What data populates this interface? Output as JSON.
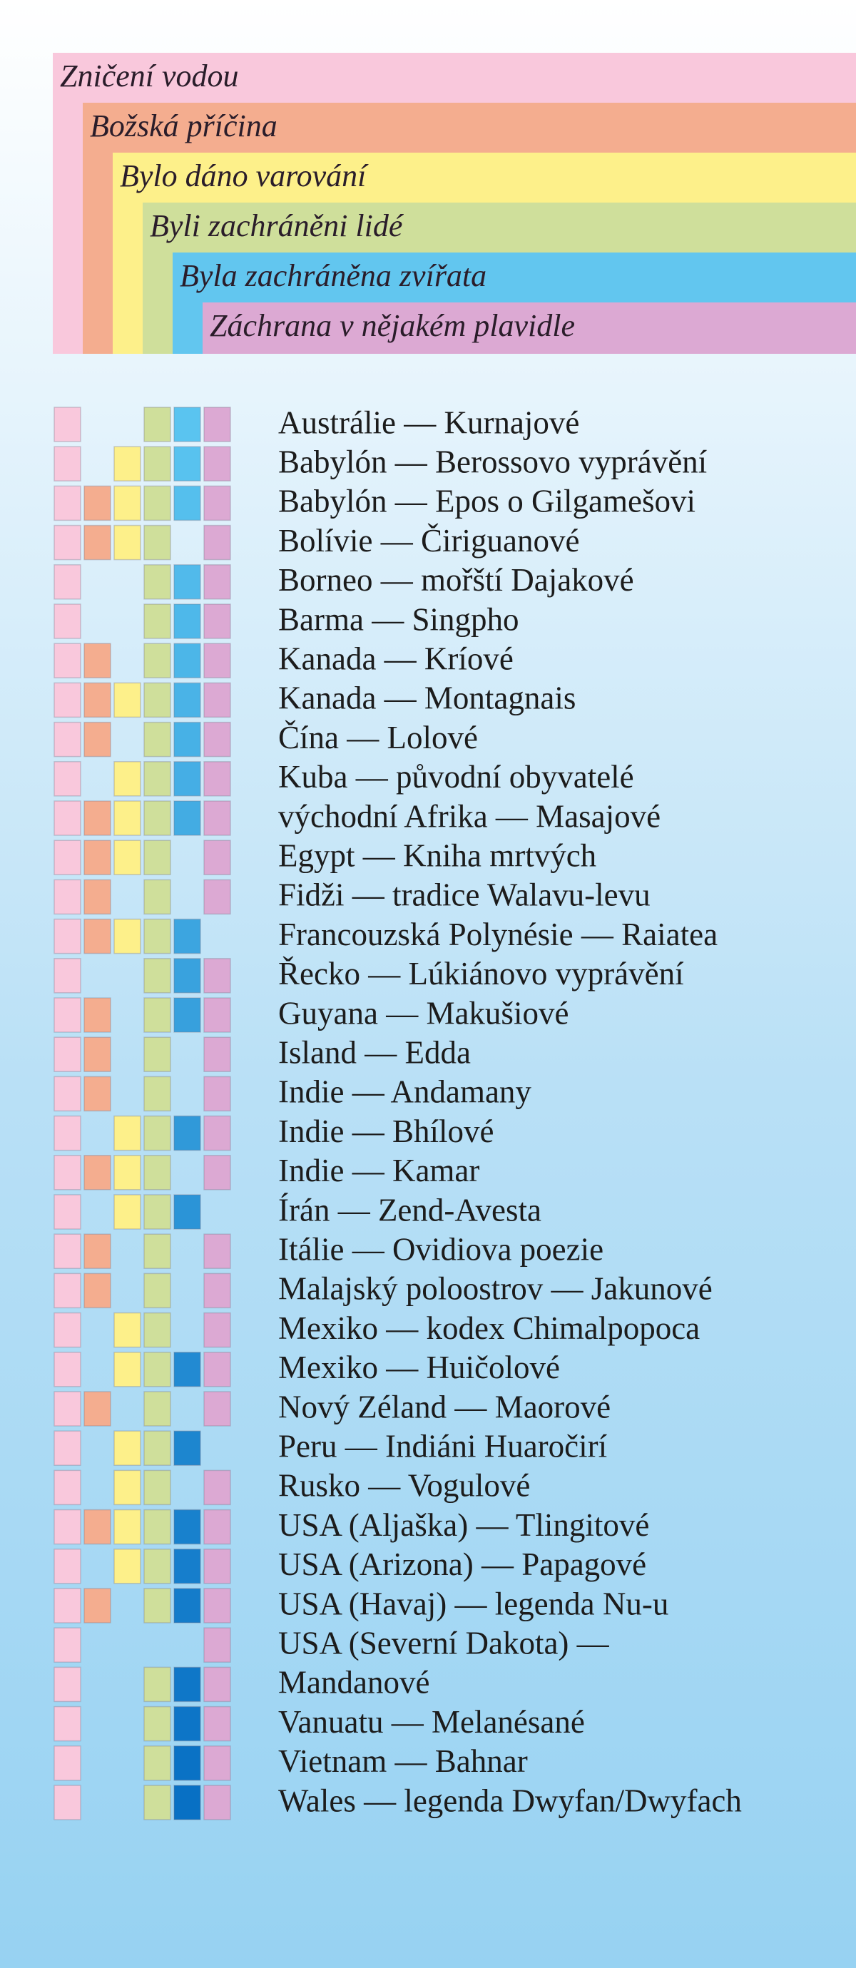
{
  "header": {
    "categories": [
      "Zničení vodou",
      "Božská příčina",
      "Bylo dáno varování",
      "Byli zachráněni lidé",
      "Byla zachráněna zvířata",
      "Záchrana v nějakém plavidle"
    ]
  },
  "rows": [
    {
      "label": "Austrálie — Kurnajové",
      "marks": [
        1,
        0,
        0,
        1,
        1,
        1
      ]
    },
    {
      "label": "Babylón — Berossovo vyprávění",
      "marks": [
        1,
        0,
        1,
        1,
        1,
        1
      ]
    },
    {
      "label": "Babylón — Epos o Gilgamešovi",
      "marks": [
        1,
        1,
        1,
        1,
        1,
        1
      ]
    },
    {
      "label": "Bolívie — Čiriguanové",
      "marks": [
        1,
        1,
        1,
        1,
        0,
        1
      ]
    },
    {
      "label": "Borneo — mořští Dajakové",
      "marks": [
        1,
        0,
        0,
        1,
        1,
        1
      ]
    },
    {
      "label": "Barma — Singpho",
      "marks": [
        1,
        0,
        0,
        1,
        1,
        1
      ]
    },
    {
      "label": "Kanada — Kríové",
      "marks": [
        1,
        1,
        0,
        1,
        1,
        1
      ]
    },
    {
      "label": "Kanada — Montagnais",
      "marks": [
        1,
        1,
        1,
        1,
        1,
        1
      ]
    },
    {
      "label": "Čína — Lolové",
      "marks": [
        1,
        1,
        0,
        1,
        1,
        1
      ]
    },
    {
      "label": "Kuba — původní obyvatelé",
      "marks": [
        1,
        0,
        1,
        1,
        1,
        1
      ]
    },
    {
      "label": "východní Afrika — Masajové",
      "marks": [
        1,
        1,
        1,
        1,
        1,
        1
      ]
    },
    {
      "label": "Egypt — Kniha mrtvých",
      "marks": [
        1,
        1,
        1,
        1,
        0,
        1
      ]
    },
    {
      "label": "Fidži — tradice Walavu-levu",
      "marks": [
        1,
        1,
        0,
        1,
        0,
        1
      ]
    },
    {
      "label": "Francouzská Polynésie — Raiatea",
      "marks": [
        1,
        1,
        1,
        1,
        1,
        0
      ]
    },
    {
      "label": "Řecko — Lúkiánovo vyprávění",
      "marks": [
        1,
        0,
        0,
        1,
        1,
        1
      ]
    },
    {
      "label": "Guyana — Makušiové",
      "marks": [
        1,
        1,
        0,
        1,
        1,
        1
      ]
    },
    {
      "label": "Island — Edda",
      "marks": [
        1,
        1,
        0,
        1,
        0,
        1
      ]
    },
    {
      "label": "Indie — Andamany",
      "marks": [
        1,
        1,
        0,
        1,
        0,
        1
      ]
    },
    {
      "label": "Indie — Bhílové",
      "marks": [
        1,
        0,
        1,
        1,
        1,
        1
      ]
    },
    {
      "label": "Indie — Kamar",
      "marks": [
        1,
        1,
        1,
        1,
        0,
        1
      ]
    },
    {
      "label": "Írán — Zend-Avesta",
      "marks": [
        1,
        0,
        1,
        1,
        1,
        0
      ]
    },
    {
      "label": "Itálie — Ovidiova poezie",
      "marks": [
        1,
        1,
        0,
        1,
        0,
        1
      ]
    },
    {
      "label": "Malajský poloostrov — Jakunové",
      "marks": [
        1,
        1,
        0,
        1,
        0,
        1
      ]
    },
    {
      "label": "Mexiko — kodex Chimalpopoca",
      "marks": [
        1,
        0,
        1,
        1,
        0,
        1
      ]
    },
    {
      "label": "Mexiko — Huičolové",
      "marks": [
        1,
        0,
        1,
        1,
        1,
        1
      ]
    },
    {
      "label": "Nový Zéland — Maorové",
      "marks": [
        1,
        1,
        0,
        1,
        0,
        1
      ]
    },
    {
      "label": "Peru — Indiáni Huaročirí",
      "marks": [
        1,
        0,
        1,
        1,
        1,
        0
      ]
    },
    {
      "label": "Rusko — Vogulové",
      "marks": [
        1,
        0,
        1,
        1,
        0,
        1
      ]
    },
    {
      "label": "USA (Aljaška) — Tlingitové",
      "marks": [
        1,
        1,
        1,
        1,
        1,
        1
      ]
    },
    {
      "label": "USA (Arizona) — Papagové",
      "marks": [
        1,
        0,
        1,
        1,
        1,
        1
      ]
    },
    {
      "label": "USA (Havaj) — legenda Nu-u",
      "marks": [
        1,
        1,
        0,
        1,
        1,
        1
      ]
    },
    {
      "label": "USA (Severní Dakota) —",
      "marks": [
        1,
        0,
        0,
        0,
        0,
        1
      ]
    },
    {
      "label": "Mandanové",
      "marks": [
        1,
        0,
        0,
        1,
        1,
        1
      ]
    },
    {
      "label": "Vanuatu — Melanésané",
      "marks": [
        1,
        0,
        0,
        1,
        1,
        1
      ]
    },
    {
      "label": "Vietnam — Bahnar",
      "marks": [
        1,
        0,
        0,
        1,
        1,
        1
      ]
    },
    {
      "label": "Wales — legenda Dwyfan/Dwyfach",
      "marks": [
        1,
        0,
        0,
        1,
        1,
        1
      ]
    }
  ]
}
